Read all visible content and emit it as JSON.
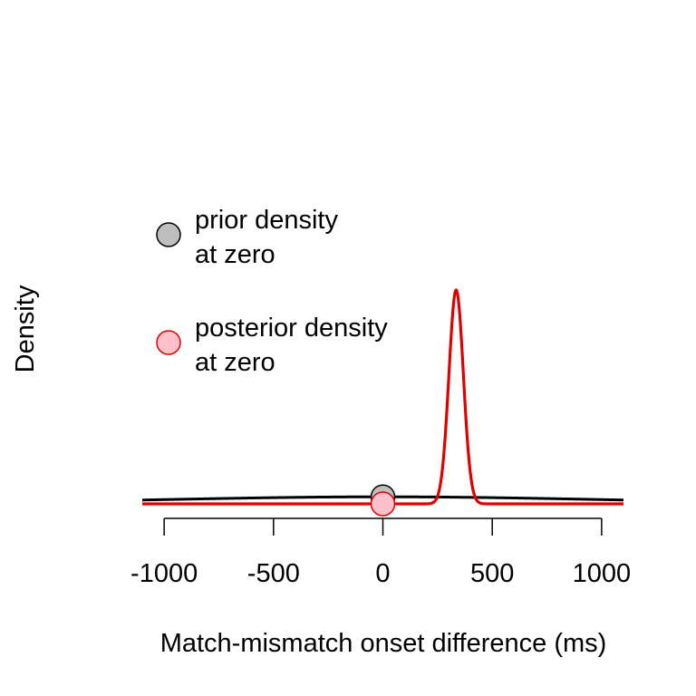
{
  "chart_data": {
    "type": "line",
    "xlabel": "Match-mismatch onset difference (ms)",
    "ylabel": "Density",
    "xlim": [
      -1100,
      1100
    ],
    "x_ticks": [
      -1000,
      -500,
      0,
      500,
      1000
    ],
    "x_tick_labels": [
      "-1000",
      "-500",
      "0",
      "500",
      "1000"
    ],
    "series": [
      {
        "color": "#000000",
        "distribution": {
          "family": "normal",
          "mean": 0,
          "sd": 1000
        }
      },
      {
        "color": "#e00000",
        "distribution": {
          "family": "normal",
          "mean": 335,
          "sd": 33
        }
      }
    ],
    "points": [
      {
        "x": 0,
        "fill": "#bebebe",
        "stroke": "#000000"
      },
      {
        "x": 0,
        "fill": "#ffc0cb",
        "stroke": "#e00000"
      }
    ],
    "legend": {
      "placement": "top-left",
      "entries": [
        {
          "line1": "prior density",
          "line2": "at zero",
          "fill": "#bebebe",
          "stroke": "#000000"
        },
        {
          "line1": "posterior density",
          "line2": "at zero",
          "fill": "#ffc0cb",
          "stroke": "#e00000"
        }
      ]
    }
  }
}
